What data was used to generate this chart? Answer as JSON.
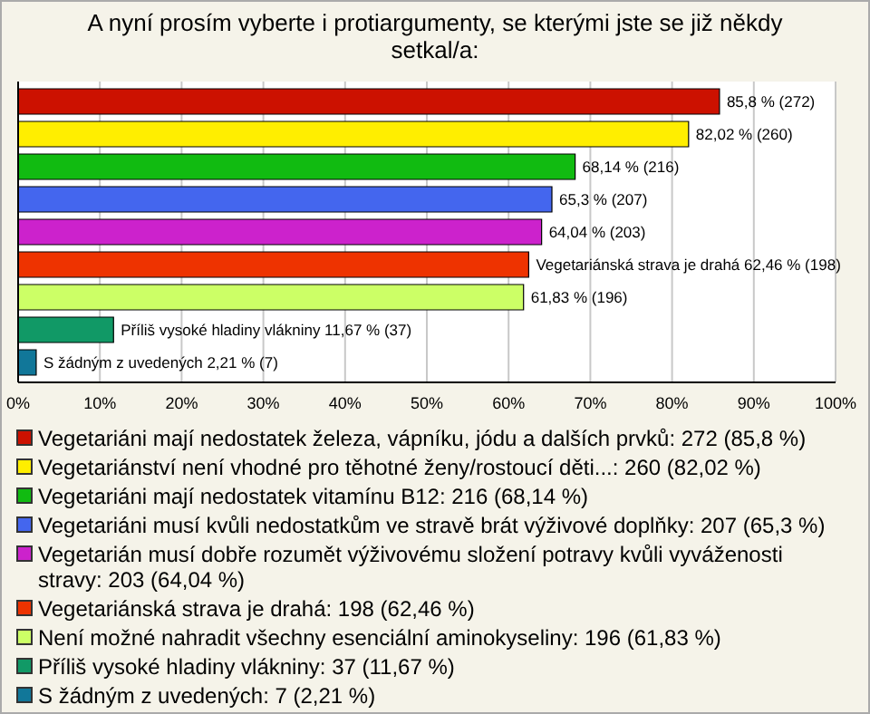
{
  "chart_data": {
    "type": "bar",
    "orientation": "horizontal",
    "title": "A nyní prosím vyberte i protiargumenty, se kterými jste se již někdy setkal/a:",
    "categories": [
      null
    ],
    "series": [
      {
        "name": "Vegetariáni mají nedostatek železa, vápníku, jódu a dalších prvků: 272 (85,8 %)",
        "color": "#cc1100",
        "values": [
          85.8
        ],
        "value_labels": [
          "85,8 % (272)"
        ]
      },
      {
        "name": "Vegetariánství není vhodné pro těhotné ženy/rostoucí děti...: 260 (82,02 %)",
        "color": "#ffee00",
        "values": [
          82.02
        ],
        "value_labels": [
          "82,02 % (260)"
        ]
      },
      {
        "name": "Vegetariáni mají nedostatek vitamínu B12: 216 (68,14 %)",
        "color": "#11bb11",
        "values": [
          68.14
        ],
        "value_labels": [
          "68,14 % (216)"
        ]
      },
      {
        "name": "Vegetariáni musí kvůli nedostatkům ve stravě brát výživové doplňky: 207 (65,3 %)",
        "color": "#4466ee",
        "values": [
          65.3
        ],
        "value_labels": [
          "65,3 % (207)"
        ]
      },
      {
        "name": "Vegetarián musí dobře rozumět výživovému složení potravy kvůli vyváženosti stravy: 203 (64,04 %)",
        "color": "#cc22cc",
        "values": [
          64.04
        ],
        "value_labels": [
          "64,04 % (203)"
        ]
      },
      {
        "name": "Vegetariánská strava je drahá: 198 (62,46 %)",
        "color": "#ee3300",
        "values": [
          62.46
        ],
        "value_labels": [
          "Vegetariánská strava je drahá 62,46 % (198)"
        ]
      },
      {
        "name": "Není možné nahradit všechny esenciální aminokyseliny: 196 (61,83 %)",
        "color": "#ccff66",
        "values": [
          61.83
        ],
        "value_labels": [
          "61,83 % (196)"
        ]
      },
      {
        "name": "Příliš vysoké hladiny vlákniny: 37 (11,67 %)",
        "color": "#119966",
        "values": [
          11.67
        ],
        "value_labels": [
          "Příliš vysoké hladiny vlákniny 11,67 % (37)"
        ]
      },
      {
        "name": "S žádným z uvedených: 7 (2,21 %)",
        "color": "#117799",
        "values": [
          2.21
        ],
        "value_labels": [
          "S žádným z uvedených 2,21 % (7)"
        ]
      }
    ],
    "xlim": [
      0,
      100
    ],
    "xticks": [
      {
        "value": 0,
        "label": "0%"
      },
      {
        "value": 10,
        "label": "10%"
      },
      {
        "value": 20,
        "label": "20%"
      },
      {
        "value": 30,
        "label": "30%"
      },
      {
        "value": 40,
        "label": "40%"
      },
      {
        "value": 50,
        "label": "50%"
      },
      {
        "value": 60,
        "label": "60%"
      },
      {
        "value": 70,
        "label": "70%"
      },
      {
        "value": 80,
        "label": "80%"
      },
      {
        "value": 90,
        "label": "90%"
      },
      {
        "value": 100,
        "label": "100%"
      }
    ],
    "grid": "x",
    "legend": "bottom"
  }
}
